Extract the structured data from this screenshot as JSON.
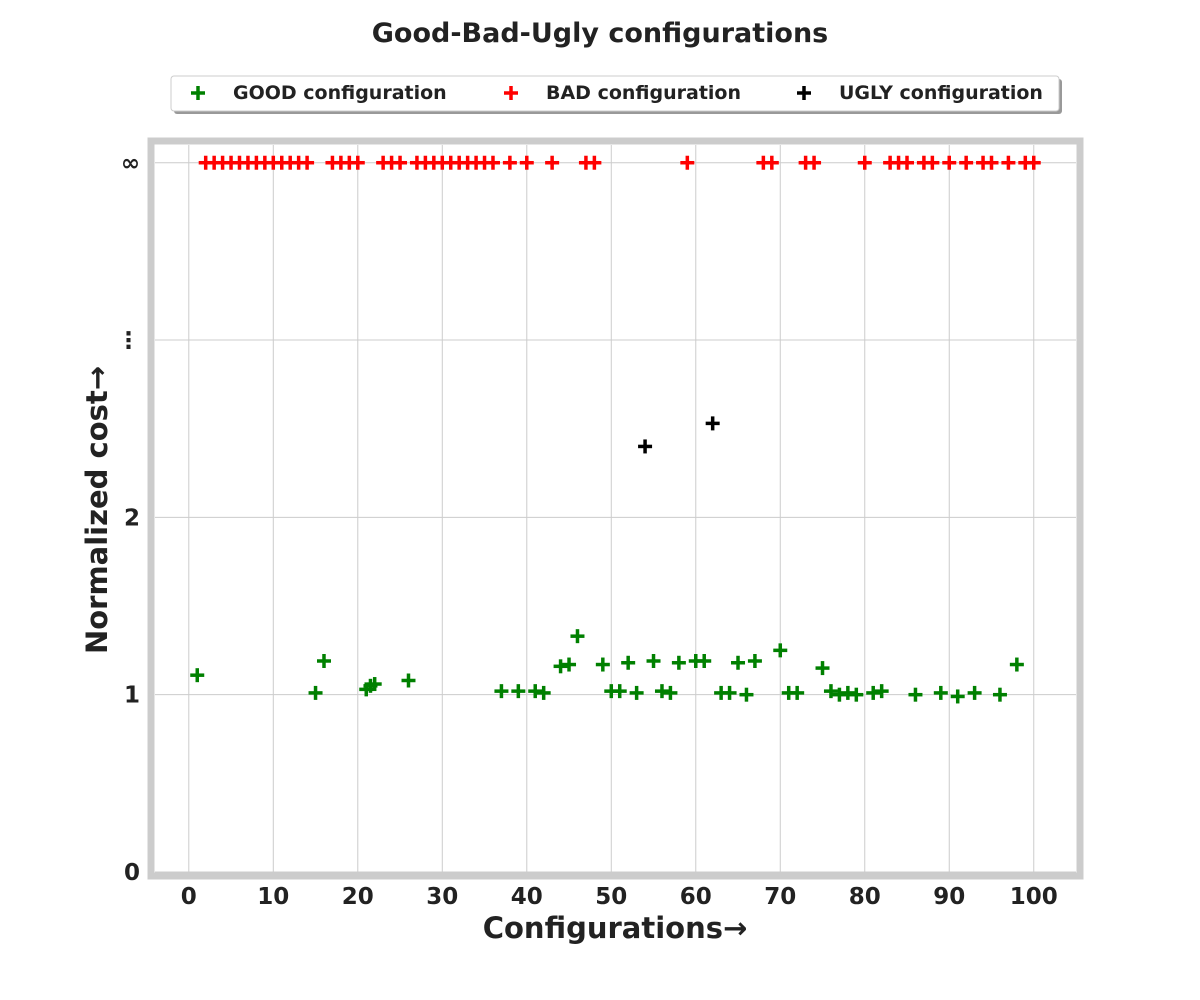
{
  "chart_data": {
    "type": "scatter",
    "title": "Good-Bad-Ugly configurations",
    "xlabel": "Configurations→",
    "ylabel": "Normalized cost→",
    "xlim": [
      -4,
      105
    ],
    "xticks": [
      0,
      10,
      20,
      30,
      40,
      50,
      60,
      70,
      80,
      90,
      100
    ],
    "yticks": [
      {
        "value": 0,
        "label": "0"
      },
      {
        "value": 1,
        "label": "1"
      },
      {
        "value": 2,
        "label": "2"
      },
      {
        "value": 3,
        "label": "⋮"
      },
      {
        "value": 4,
        "label": "∞"
      }
    ],
    "ylim": [
      0,
      4.1
    ],
    "grid": true,
    "legend_position": "top-center",
    "series": [
      {
        "name": "GOOD configuration",
        "color": "#008000",
        "marker": "plus",
        "points": [
          [
            1,
            1.11
          ],
          [
            15,
            1.01
          ],
          [
            16,
            1.19
          ],
          [
            21,
            1.03
          ],
          [
            21.5,
            1.05
          ],
          [
            22,
            1.06
          ],
          [
            26,
            1.08
          ],
          [
            37,
            1.02
          ],
          [
            39,
            1.02
          ],
          [
            41,
            1.02
          ],
          [
            42,
            1.01
          ],
          [
            44,
            1.16
          ],
          [
            45,
            1.17
          ],
          [
            46,
            1.33
          ],
          [
            49,
            1.17
          ],
          [
            50,
            1.02
          ],
          [
            51,
            1.02
          ],
          [
            52,
            1.18
          ],
          [
            53,
            1.01
          ],
          [
            55,
            1.19
          ],
          [
            56,
            1.02
          ],
          [
            57,
            1.01
          ],
          [
            58,
            1.18
          ],
          [
            60,
            1.19
          ],
          [
            61,
            1.19
          ],
          [
            63,
            1.01
          ],
          [
            64,
            1.01
          ],
          [
            65,
            1.18
          ],
          [
            66,
            1.0
          ],
          [
            67,
            1.19
          ],
          [
            70,
            1.25
          ],
          [
            71,
            1.01
          ],
          [
            72,
            1.01
          ],
          [
            75,
            1.15
          ],
          [
            76,
            1.02
          ],
          [
            77,
            1.0
          ],
          [
            78,
            1.01
          ],
          [
            79,
            1.0
          ],
          [
            81,
            1.01
          ],
          [
            82,
            1.02
          ],
          [
            86,
            1.0
          ],
          [
            89,
            1.01
          ],
          [
            91,
            0.99
          ],
          [
            93,
            1.01
          ],
          [
            96,
            1.0
          ],
          [
            98,
            1.17
          ]
        ]
      },
      {
        "name": "BAD configuration",
        "color": "#ff0000",
        "marker": "plus",
        "x": [
          2,
          3,
          4,
          5,
          6,
          7,
          8,
          9,
          10,
          11,
          12,
          13,
          14,
          17,
          18,
          19,
          20,
          23,
          24,
          25,
          27,
          28,
          29,
          30,
          31,
          32,
          33,
          34,
          35,
          36,
          38,
          40,
          43,
          47,
          48,
          59,
          68,
          69,
          73,
          74,
          80,
          83,
          84,
          85,
          87,
          88,
          90,
          92,
          94,
          95,
          97,
          99,
          100
        ],
        "y": 4
      },
      {
        "name": "UGLY configuration",
        "color": "#000000",
        "marker": "plus",
        "points": [
          [
            54,
            2.4
          ],
          [
            62,
            2.53
          ]
        ]
      }
    ]
  }
}
